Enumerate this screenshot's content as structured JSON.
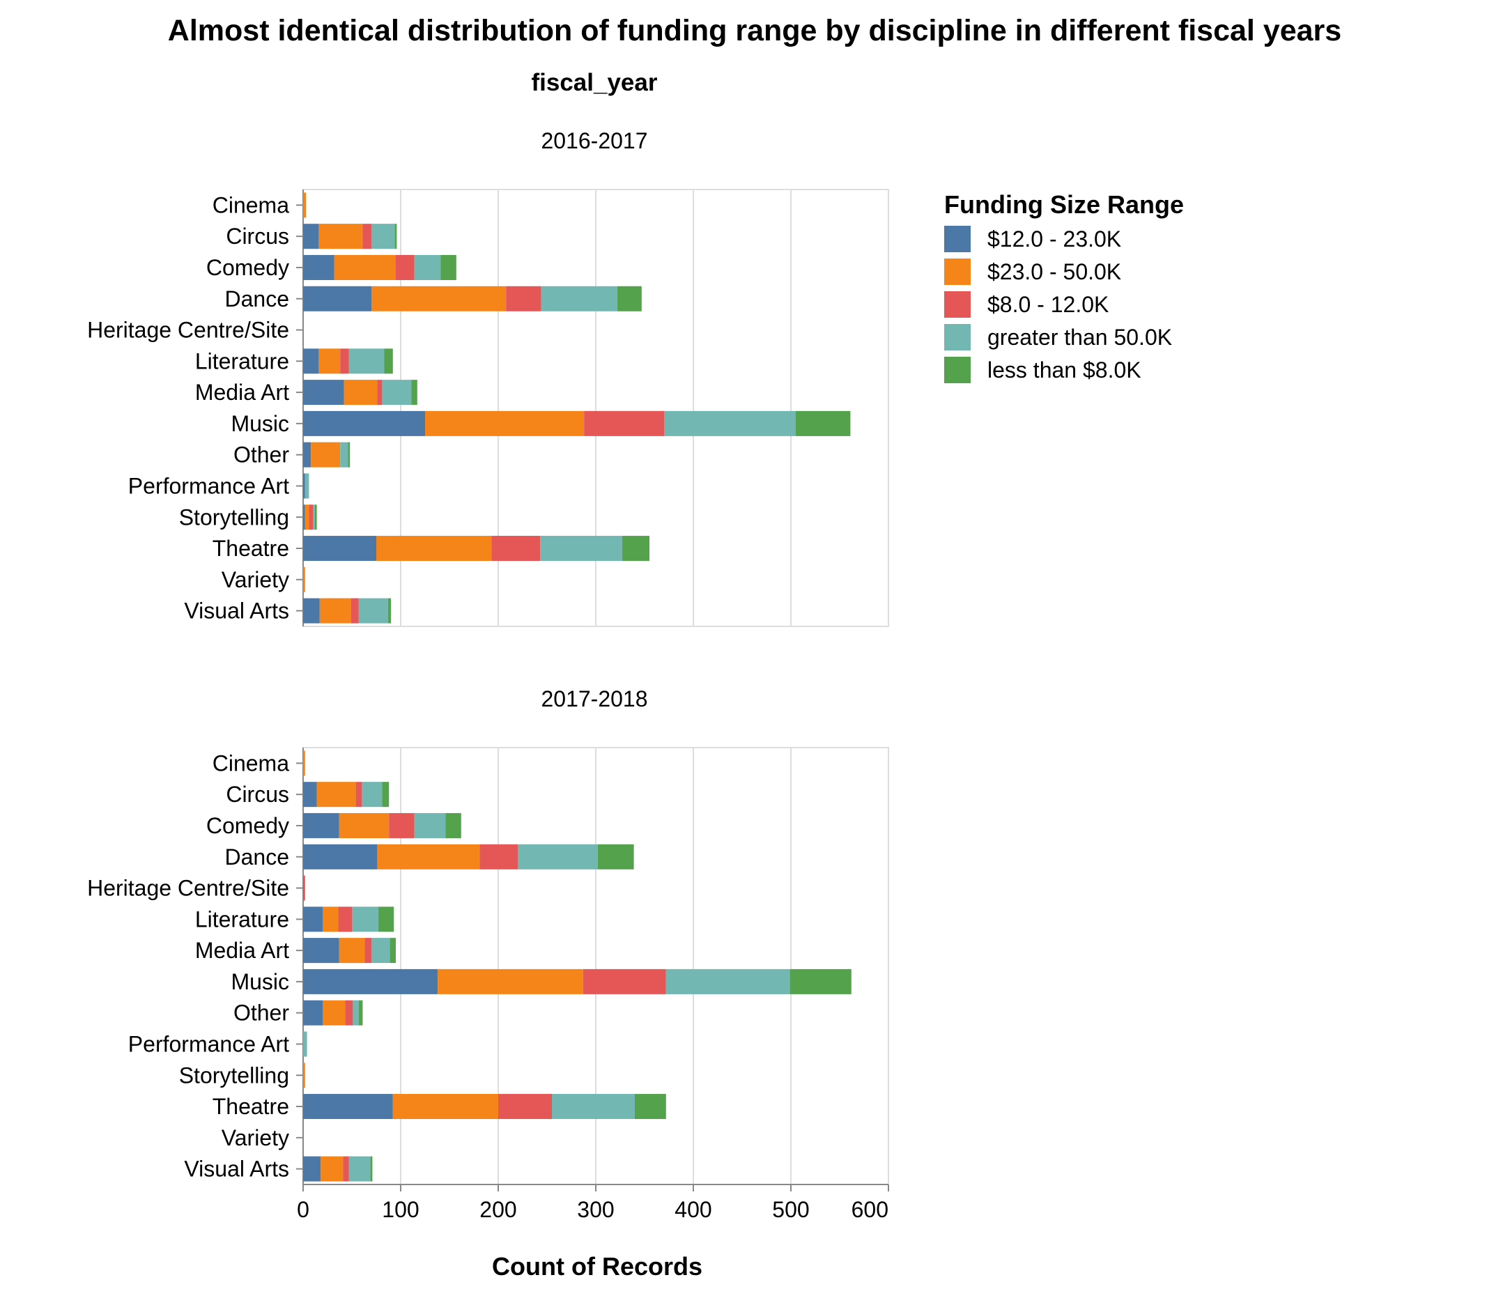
{
  "chart_data": {
    "type": "bar",
    "orientation": "horizontal",
    "stacked": true,
    "title": "Almost identical distribution of funding range by discipline in different fiscal years",
    "facet_title": "fiscal_year",
    "xlabel": "Count of Records",
    "xlim": [
      0,
      600
    ],
    "x_ticks": [
      "0",
      "100",
      "200",
      "300",
      "400",
      "500",
      "600"
    ],
    "grid": true,
    "legend": {
      "title": "Funding Size Range",
      "placement": "right",
      "items": [
        {
          "label": "$12.0 - 23.0K",
          "color": "#4c78a8"
        },
        {
          "label": "$23.0 - 50.0K",
          "color": "#f58518"
        },
        {
          "label": "$8.0 - 12.0K",
          "color": "#e45756"
        },
        {
          "label": "greater than 50.0K",
          "color": "#72b7b2"
        },
        {
          "label": "less than $8.0K",
          "color": "#54a24b"
        }
      ]
    },
    "categories": [
      "Cinema",
      "Circus",
      "Comedy",
      "Dance",
      "Heritage Centre/Site",
      "Literature",
      "Media Art",
      "Music",
      "Other",
      "Performance Art",
      "Storytelling",
      "Theatre",
      "Variety",
      "Visual Arts"
    ],
    "facets": [
      {
        "name": "2016-2017",
        "series": [
          {
            "name": "$12.0 - 23.0K",
            "values": [
              0,
              16,
              32,
              70,
              0,
              16,
              42,
              125,
              8,
              2,
              2,
              75,
              0,
              17
            ]
          },
          {
            "name": "$23.0 - 50.0K",
            "values": [
              3,
              45,
              63,
              138,
              0,
              22,
              34,
              163,
              30,
              0,
              4,
              118,
              2,
              32
            ]
          },
          {
            "name": "$8.0 - 12.0K",
            "values": [
              0,
              9,
              19,
              36,
              0,
              9,
              5,
              82,
              0,
              0,
              4,
              50,
              0,
              8
            ]
          },
          {
            "name": "greater than 50.0K",
            "values": [
              0,
              24,
              27,
              78,
              0,
              36,
              30,
              135,
              8,
              4,
              2,
              84,
              0,
              30
            ]
          },
          {
            "name": "less than $8.0K",
            "values": [
              0,
              2,
              16,
              25,
              0,
              9,
              6,
              56,
              2,
              0,
              2,
              28,
              0,
              3
            ]
          }
        ]
      },
      {
        "name": "2017-2018",
        "series": [
          {
            "name": "$12.0 - 23.0K",
            "values": [
              0,
              14,
              37,
              76,
              0,
              20,
              37,
              138,
              20,
              0,
              0,
              92,
              0,
              18
            ]
          },
          {
            "name": "$23.0 - 50.0K",
            "values": [
              2,
              40,
              51,
              105,
              0,
              16,
              26,
              149,
              23,
              0,
              2,
              108,
              0,
              23
            ]
          },
          {
            "name": "$8.0 - 12.0K",
            "values": [
              0,
              6,
              26,
              39,
              2,
              14,
              7,
              85,
              8,
              0,
              0,
              55,
              0,
              6
            ]
          },
          {
            "name": "greater than 50.0K",
            "values": [
              0,
              21,
              32,
              82,
              0,
              27,
              19,
              127,
              6,
              4,
              0,
              85,
              0,
              22
            ]
          },
          {
            "name": "less than $8.0K",
            "values": [
              0,
              7,
              16,
              37,
              0,
              16,
              6,
              63,
              4,
              0,
              0,
              32,
              0,
              2
            ]
          }
        ]
      }
    ]
  }
}
